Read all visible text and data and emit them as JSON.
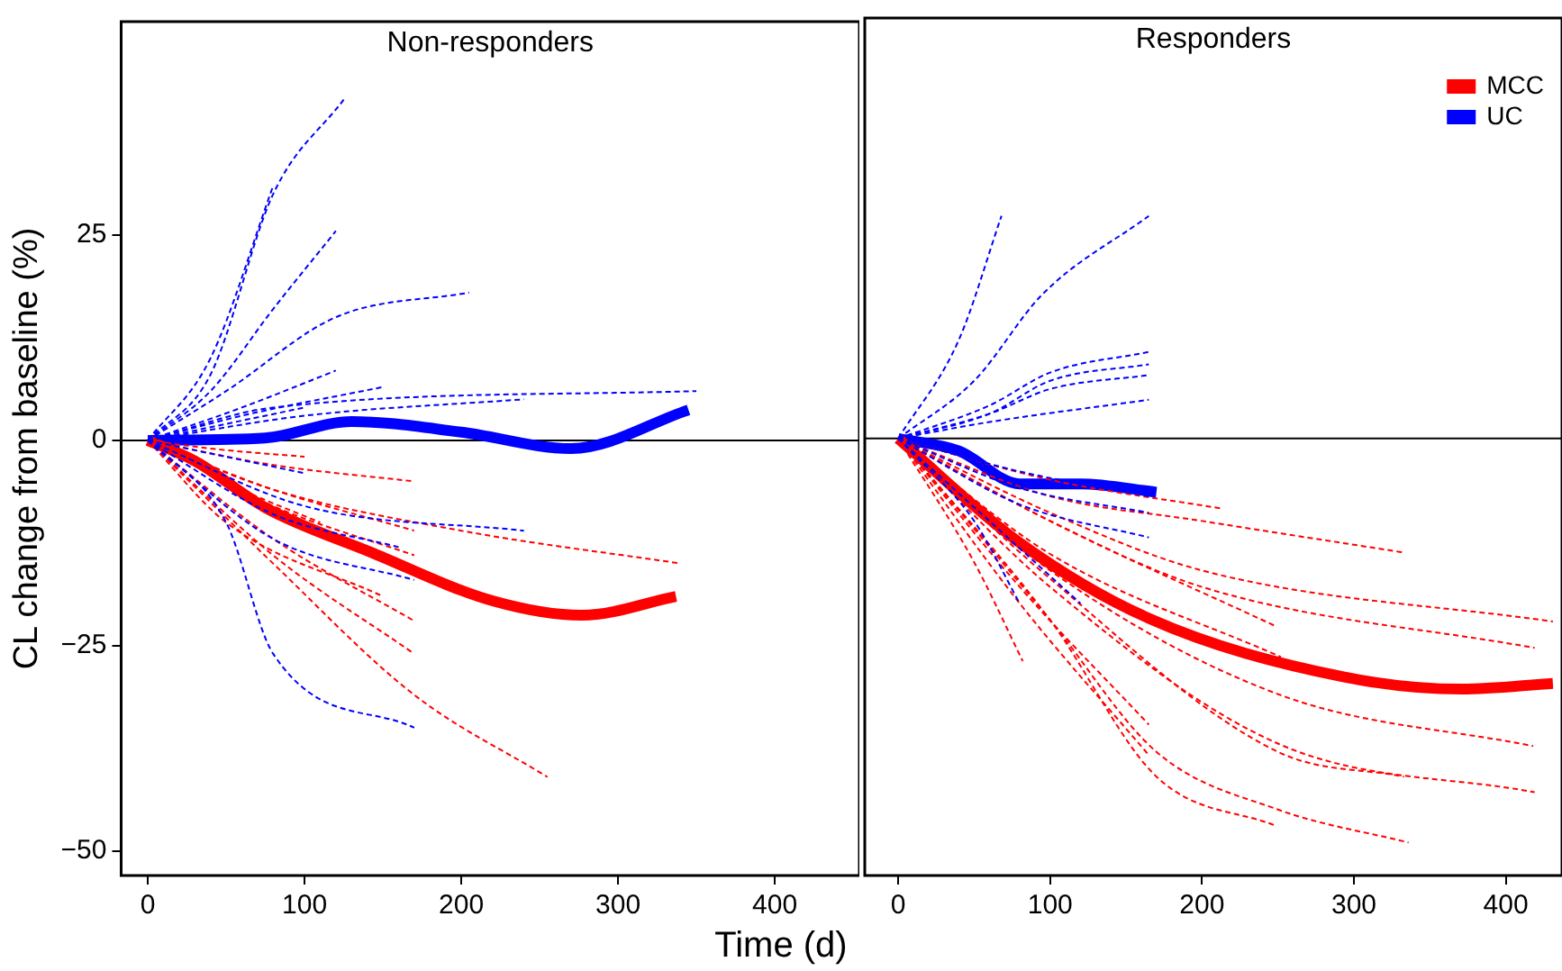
{
  "chart_data": [
    {
      "type": "line",
      "title": "Non-responders",
      "xlabel": "Time (d)",
      "ylabel": "CL change from baseline (%)",
      "xlim": [
        -17,
        454
      ],
      "ylim": [
        -53,
        51
      ],
      "xticks": [
        0,
        100,
        200,
        300,
        400
      ],
      "yticks": [
        {
          "value": -50,
          "label": "−50"
        },
        {
          "value": -25,
          "label": "−25"
        },
        0,
        25
      ],
      "ref_lines": [
        {
          "axis": "y",
          "value": 0,
          "color": "#000000"
        }
      ],
      "series": [
        {
          "color": "#0000ff",
          "line_style": "dashed",
          "x": [
            0,
            40,
            80,
            125
          ],
          "values": [
            0,
            8,
            30,
            41.5
          ]
        },
        {
          "color": "#0000ff",
          "line_style": "dashed",
          "x": [
            0,
            40,
            80,
            120
          ],
          "values": [
            0,
            6,
            16,
            25.5
          ]
        },
        {
          "color": "#0000ff",
          "line_style": "dashed",
          "x": [
            0,
            50,
            120,
            205
          ],
          "values": [
            0,
            6,
            15,
            18
          ]
        },
        {
          "color": "#0000ff",
          "line_style": "dashed",
          "x": [
            0,
            40,
            80
          ],
          "values": [
            0,
            10,
            31
          ]
        },
        {
          "color": "#0000ff",
          "line_style": "dashed",
          "x": [
            0,
            60,
            120
          ],
          "values": [
            0,
            4,
            8.5
          ]
        },
        {
          "color": "#0000ff",
          "line_style": "dashed",
          "x": [
            0,
            60,
            150
          ],
          "values": [
            0,
            3,
            6.5
          ]
        },
        {
          "color": "#0000ff",
          "line_style": "dashed",
          "x": [
            0,
            80,
            350
          ],
          "values": [
            0,
            4,
            6
          ]
        },
        {
          "color": "#0000ff",
          "line_style": "dashed",
          "x": [
            0,
            100,
            240
          ],
          "values": [
            0,
            3,
            5
          ]
        },
        {
          "color": "#0000ff",
          "line_style": "dashed",
          "x": [
            0,
            50,
            100
          ],
          "values": [
            0,
            2,
            4
          ]
        },
        {
          "color": "#0000ff",
          "line_style": "dashed",
          "x": [
            0,
            50,
            80,
            170
          ],
          "values": [
            0,
            -10,
            -26,
            -35
          ]
        },
        {
          "color": "#0000ff",
          "line_style": "dashed",
          "x": [
            0,
            100,
            240
          ],
          "values": [
            0,
            -8,
            -11
          ]
        },
        {
          "color": "#0000ff",
          "line_style": "dashed",
          "x": [
            0,
            80,
            170
          ],
          "values": [
            0,
            -12,
            -17
          ]
        },
        {
          "color": "#0000ff",
          "line_style": "dashed",
          "x": [
            0,
            100
          ],
          "values": [
            0,
            -4
          ]
        },
        {
          "color": "#0000ff",
          "line_style": "dashed",
          "x": [
            0,
            80,
            160
          ],
          "values": [
            0,
            -9,
            -13
          ]
        },
        {
          "color": "#ff0000",
          "line_style": "dashed",
          "x": [
            0,
            80,
            170,
            255
          ],
          "values": [
            0,
            -15,
            -31,
            -41
          ]
        },
        {
          "color": "#ff0000",
          "line_style": "dashed",
          "x": [
            0,
            80,
            170
          ],
          "values": [
            0,
            -14,
            -26
          ]
        },
        {
          "color": "#ff0000",
          "line_style": "dashed",
          "x": [
            0,
            80,
            170
          ],
          "values": [
            0,
            -12,
            -22
          ]
        },
        {
          "color": "#ff0000",
          "line_style": "dashed",
          "x": [
            0,
            80,
            170
          ],
          "values": [
            0,
            -8,
            -14
          ]
        },
        {
          "color": "#ff0000",
          "line_style": "dashed",
          "x": [
            0,
            80,
            170
          ],
          "values": [
            0,
            -3,
            -5
          ]
        },
        {
          "color": "#ff0000",
          "line_style": "dashed",
          "x": [
            0,
            80,
            170
          ],
          "values": [
            0,
            -6,
            -11
          ]
        },
        {
          "color": "#ff0000",
          "line_style": "dashed",
          "x": [
            0,
            80,
            200,
            340
          ],
          "values": [
            0,
            -6,
            -11,
            -15
          ]
        },
        {
          "color": "#ff0000",
          "line_style": "dashed",
          "x": [
            0,
            50,
            150
          ],
          "values": [
            0,
            -10,
            -19
          ]
        },
        {
          "color": "#ff0000",
          "line_style": "dashed",
          "x": [
            0,
            60,
            110
          ],
          "values": [
            0,
            -6,
            -10
          ]
        },
        {
          "color": "#ff0000",
          "line_style": "dashed",
          "x": [
            0,
            40,
            100
          ],
          "values": [
            0,
            -1,
            -2
          ]
        },
        {
          "color": "#ff0000",
          "line_style": "solid",
          "x": [
            0,
            30,
            75,
            142,
            221,
            277,
            337
          ],
          "values": [
            0,
            -2.5,
            -8.2,
            -13.6,
            -19.6,
            -21.3,
            -19
          ]
        },
        {
          "color": "#0000ff",
          "line_style": "solid",
          "x": [
            0,
            75,
            130,
            200,
            270,
            345
          ],
          "values": [
            0,
            0.3,
            2.3,
            1,
            -1,
            3.7
          ]
        }
      ]
    },
    {
      "type": "line",
      "title": "Responders",
      "legend": "top right",
      "tick_labels": "x",
      "xlim": [
        -22,
        437
      ],
      "ylim": [
        -53,
        51
      ],
      "xticks": [
        0,
        100,
        200,
        300,
        400
      ],
      "ref_lines": [
        {
          "axis": "y",
          "value": 0,
          "color": "#000000"
        }
      ],
      "series": [
        {
          "color": "#0000ff",
          "line_style": "dashed",
          "x": [
            0,
            40,
            68
          ],
          "values": [
            0,
            12,
            27
          ]
        },
        {
          "color": "#0000ff",
          "line_style": "dashed",
          "x": [
            0,
            50,
            95,
            165
          ],
          "values": [
            0,
            7,
            17.5,
            27
          ]
        },
        {
          "color": "#0000ff",
          "line_style": "dashed",
          "x": [
            0,
            60,
            100,
            165
          ],
          "values": [
            0,
            4,
            8,
            10.5
          ]
        },
        {
          "color": "#0000ff",
          "line_style": "dashed",
          "x": [
            0,
            60,
            100,
            165
          ],
          "values": [
            0,
            3,
            7,
            9
          ]
        },
        {
          "color": "#0000ff",
          "line_style": "dashed",
          "x": [
            0,
            60,
            100,
            165
          ],
          "values": [
            0,
            3,
            6,
            7.7
          ]
        },
        {
          "color": "#0000ff",
          "line_style": "dashed",
          "x": [
            0,
            60,
            165
          ],
          "values": [
            0,
            2,
            4.7
          ]
        },
        {
          "color": "#0000ff",
          "line_style": "dashed",
          "x": [
            0,
            80,
            165
          ],
          "values": [
            0,
            -4,
            -7
          ]
        },
        {
          "color": "#0000ff",
          "line_style": "dashed",
          "x": [
            0,
            80,
            165
          ],
          "values": [
            0,
            -6,
            -9
          ]
        },
        {
          "color": "#0000ff",
          "line_style": "dashed",
          "x": [
            0,
            80,
            165
          ],
          "values": [
            0,
            -8,
            -12
          ]
        },
        {
          "color": "#0000ff",
          "line_style": "dashed",
          "x": [
            0,
            60,
            120
          ],
          "values": [
            0,
            -10,
            -20
          ]
        },
        {
          "color": "#0000ff",
          "line_style": "dashed",
          "x": [
            0,
            50,
            80
          ],
          "values": [
            0,
            -10,
            -20
          ]
        },
        {
          "color": "#ff0000",
          "line_style": "dashed",
          "x": [
            0,
            100,
            200,
            332
          ],
          "values": [
            0,
            -7,
            -10,
            -13.8
          ]
        },
        {
          "color": "#ff0000",
          "line_style": "dashed",
          "x": [
            0,
            100,
            200,
            431
          ],
          "values": [
            0,
            -9,
            -16,
            -22.2
          ]
        },
        {
          "color": "#ff0000",
          "line_style": "dashed",
          "x": [
            0,
            100,
            200,
            419
          ],
          "values": [
            0,
            -10,
            -18,
            -25.4
          ]
        },
        {
          "color": "#ff0000",
          "line_style": "dashed",
          "x": [
            0,
            100,
            249
          ],
          "values": [
            0,
            -10,
            -22.8
          ]
        },
        {
          "color": "#ff0000",
          "line_style": "dashed",
          "x": [
            0,
            100,
            250,
            418
          ],
          "values": [
            0,
            -16,
            -31,
            -37.3
          ]
        },
        {
          "color": "#ff0000",
          "line_style": "dashed",
          "x": [
            0,
            100,
            250,
            419
          ],
          "values": [
            0,
            -18,
            -37,
            -42.9
          ]
        },
        {
          "color": "#ff0000",
          "line_style": "dashed",
          "x": [
            0,
            100,
            170,
            250,
            336
          ],
          "values": [
            0,
            -22,
            -38,
            -45,
            -49
          ]
        },
        {
          "color": "#ff0000",
          "line_style": "dashed",
          "x": [
            0,
            100,
            170,
            249
          ],
          "values": [
            0,
            -22,
            -41,
            -47
          ]
        },
        {
          "color": "#ff0000",
          "line_style": "dashed",
          "x": [
            0,
            100,
            213
          ],
          "values": [
            0,
            -5,
            -8.5
          ]
        },
        {
          "color": "#ff0000",
          "line_style": "dashed",
          "x": [
            0,
            100,
            252
          ],
          "values": [
            0,
            -14,
            -26.5
          ]
        },
        {
          "color": "#ff0000",
          "line_style": "dashed",
          "x": [
            0,
            100,
            250,
            333
          ],
          "values": [
            0,
            -17,
            -38,
            -41
          ]
        },
        {
          "color": "#ff0000",
          "line_style": "dashed",
          "x": [
            0,
            50,
            82
          ],
          "values": [
            0,
            -15,
            -27
          ]
        },
        {
          "color": "#ff0000",
          "line_style": "dashed",
          "x": [
            0,
            80,
            165
          ],
          "values": [
            0,
            -18,
            -34.7
          ]
        },
        {
          "color": "#ff0000",
          "line_style": "dashed",
          "x": [
            0,
            80,
            165
          ],
          "values": [
            0,
            -20,
            -38.4
          ]
        },
        {
          "name": "MCC",
          "color": "#ff0000",
          "line_style": "solid",
          "x": [
            0,
            79,
            165,
            293,
            371,
            431
          ],
          "values": [
            0,
            -12.5,
            -21.8,
            -28.9,
            -30.4,
            -29.7
          ]
        },
        {
          "name": "UC",
          "color": "#0000ff",
          "line_style": "solid",
          "x": [
            0,
            40,
            80,
            120,
            170
          ],
          "values": [
            0,
            -1.5,
            -5.5,
            -5.5,
            -6.5
          ]
        }
      ]
    }
  ]
}
